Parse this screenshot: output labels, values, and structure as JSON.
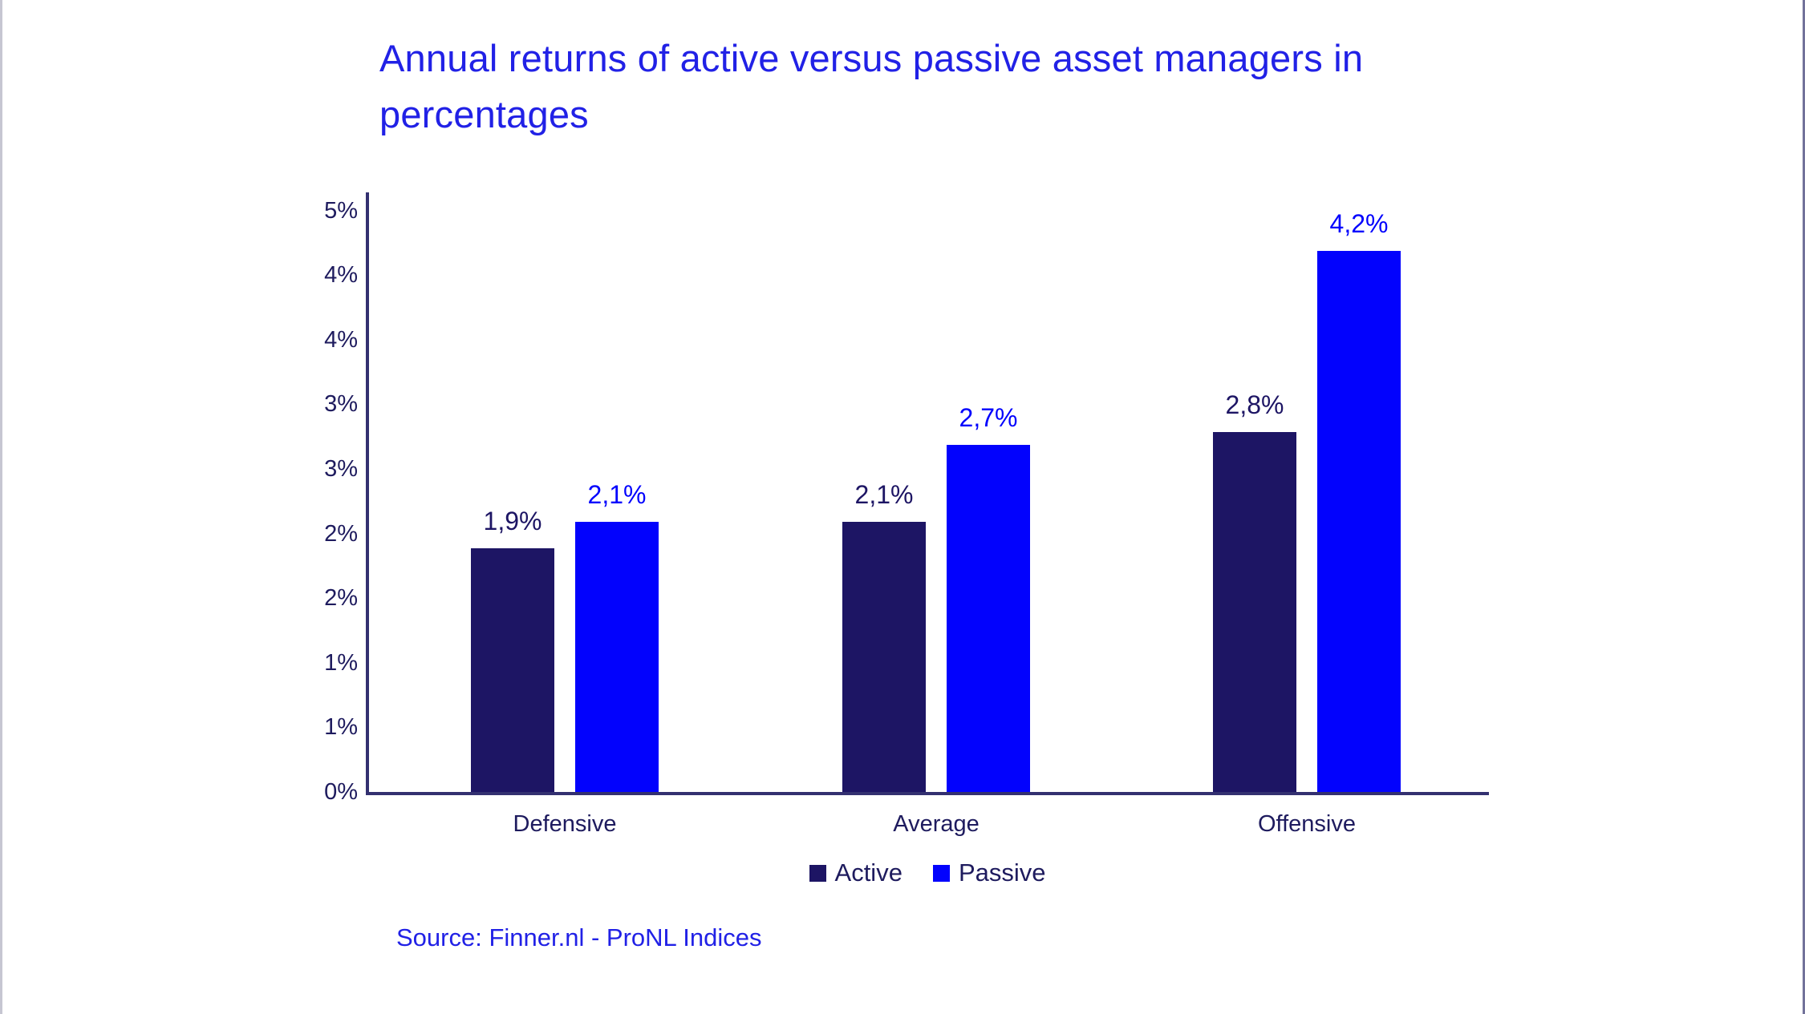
{
  "title": "Annual returns of active versus passive asset managers in percentages",
  "source": "Source: Finner.nl - ProNL Indices",
  "colors": {
    "title_blue": "#2121e6",
    "active_navy": "#1d1564",
    "passive_blue": "#0202fd",
    "axis_line": "#333070",
    "text_navy": "#1e1b5e"
  },
  "legend": {
    "items": [
      {
        "label": "Active",
        "color": "#1d1564"
      },
      {
        "label": "Passive",
        "color": "#0202fd"
      }
    ]
  },
  "chart_data": {
    "type": "bar",
    "title": "Annual returns of active versus passive asset managers in percentages",
    "categories": [
      "Defensive",
      "Average",
      "Offensive"
    ],
    "series": [
      {
        "name": "Active",
        "color": "#1d1564",
        "values": [
          1.9,
          2.1,
          2.8
        ],
        "labels": [
          "1,9%",
          "2,1%",
          "2,8%"
        ]
      },
      {
        "name": "Passive",
        "color": "#0202fd",
        "values": [
          2.1,
          2.7,
          4.2
        ],
        "labels": [
          "2,1%",
          "2,7%",
          "4,2%"
        ]
      }
    ],
    "xlabel": "",
    "ylabel": "",
    "y_axis": {
      "tick_labels": [
        "0%",
        "1%",
        "1%",
        "2%",
        "2%",
        "3%",
        "3%",
        "4%",
        "4%",
        "5%"
      ],
      "tick_values": [
        0,
        0.5,
        1,
        1.5,
        2,
        2.5,
        3,
        3.5,
        4,
        4.5
      ],
      "range": [
        0,
        4.5
      ],
      "note": "labels rounded to whole percent"
    },
    "grid": false,
    "legend_position": "bottom",
    "value_labels": "above bars, colored per series, decimal comma"
  }
}
